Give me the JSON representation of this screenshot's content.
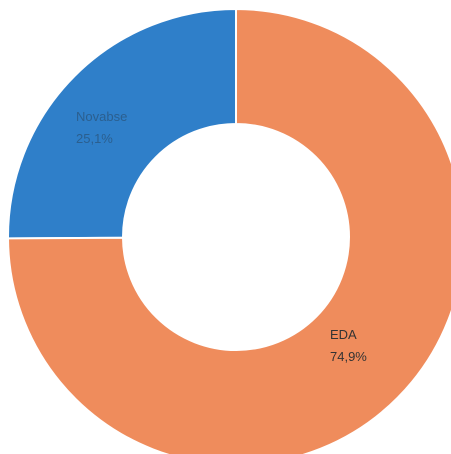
{
  "chart_data": {
    "type": "pie",
    "donut": true,
    "categories": [
      "Novabse",
      "EDA"
    ],
    "values": [
      25.1,
      74.9
    ],
    "series": [
      {
        "values": [
          25.1,
          74.9
        ]
      }
    ],
    "slice_labels": [
      {
        "name": "Novabse",
        "percent_text": "25,1%"
      },
      {
        "name": "EDA",
        "percent_text": "74,9%"
      }
    ],
    "colors": [
      "#2f7fc9",
      "#ef8c5c"
    ],
    "label_colors": [
      "#2b5f8f",
      "#333333"
    ],
    "start_angle_deg": 0,
    "direction": "counterclockwise-from-top",
    "legend": "none"
  }
}
